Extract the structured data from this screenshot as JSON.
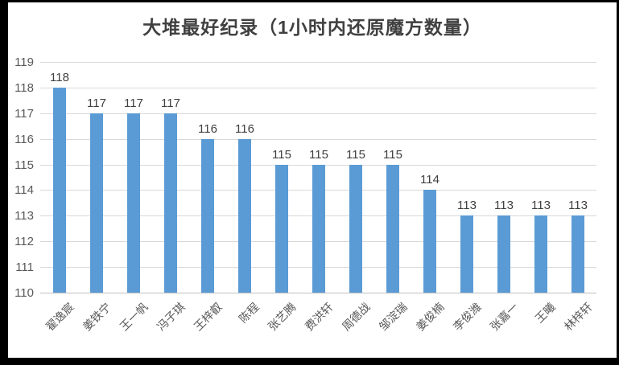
{
  "window": {
    "background": "#ffffff",
    "border_color": "#000000"
  },
  "chart_data": {
    "type": "bar",
    "title": "大堆最好纪录（1小时内还原魔方数量）",
    "categories": [
      "翟逸宸",
      "姜铁宁",
      "王一帆",
      "冯子琪",
      "王梓叡",
      "陈程",
      "张艺腾",
      "费洪轩",
      "周德战",
      "邹淀瑞",
      "姜俊楠",
      "李俊潍",
      "张嘉一",
      "王曦",
      "林梓轩"
    ],
    "values": [
      118,
      117,
      117,
      117,
      116,
      116,
      115,
      115,
      115,
      115,
      114,
      113,
      113,
      113,
      113
    ],
    "xlabel": "",
    "ylabel": "",
    "ylim": [
      110,
      119
    ],
    "yticks": [
      110,
      111,
      112,
      113,
      114,
      115,
      116,
      117,
      118,
      119
    ],
    "grid": "horizontal-on",
    "legend": "none",
    "data_labels": true,
    "colors": {
      "bar": "#5B9BD5",
      "gridline": "#D9D9D9",
      "axis_line": "#BFBFBF",
      "title_text": "#404040",
      "data_label_text": "#404040",
      "tick_text": "#595959"
    }
  }
}
